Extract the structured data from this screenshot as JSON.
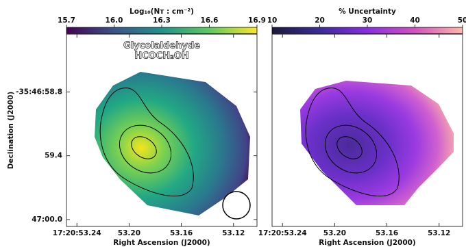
{
  "chart_data": [
    {
      "type": "map",
      "title": "Log₁₀(Nᴛ : cm⁻²)",
      "annotation": [
        "Glycolaldehyde",
        "HCOCH₂OH"
      ],
      "colorbar_lim": [
        15.7,
        16.9
      ],
      "colorbar_ticks": [
        15.7,
        {
          "value": 16,
          "label": "16.0"
        },
        16.3,
        16.6,
        16.9
      ],
      "xlabel": "Right Ascension (J2000)",
      "ylabel": "Declination (J2000)",
      "xlim": [
        53.248,
        53.102
      ],
      "xticks": [
        {
          "value": 53.24,
          "label": "17:20:53.24"
        },
        {
          "value": 53.2,
          "label": "53.20"
        },
        53.16,
        53.12
      ],
      "ylim": [
        60.065,
        58.257
      ],
      "yticks": [
        {
          "value": 58.8,
          "label": "-35:46:58.8"
        },
        59.4,
        {
          "value": 60,
          "label": "47:00.0"
        }
      ]
    },
    {
      "type": "map",
      "title": "% Uncertainty",
      "colorbar_lim": [
        10,
        50
      ],
      "colorbar_ticks": [
        10,
        20,
        30,
        40,
        50
      ],
      "xlabel": "Right Ascension (J2000)",
      "xlim": [
        53.248,
        53.102
      ],
      "xticks": [
        {
          "value": 53.24,
          "label": "17:20:53.24"
        },
        {
          "value": 53.2,
          "label": "53.20"
        },
        53.16,
        53.12
      ],
      "ylim": [
        60.065,
        58.257
      ]
    }
  ]
}
